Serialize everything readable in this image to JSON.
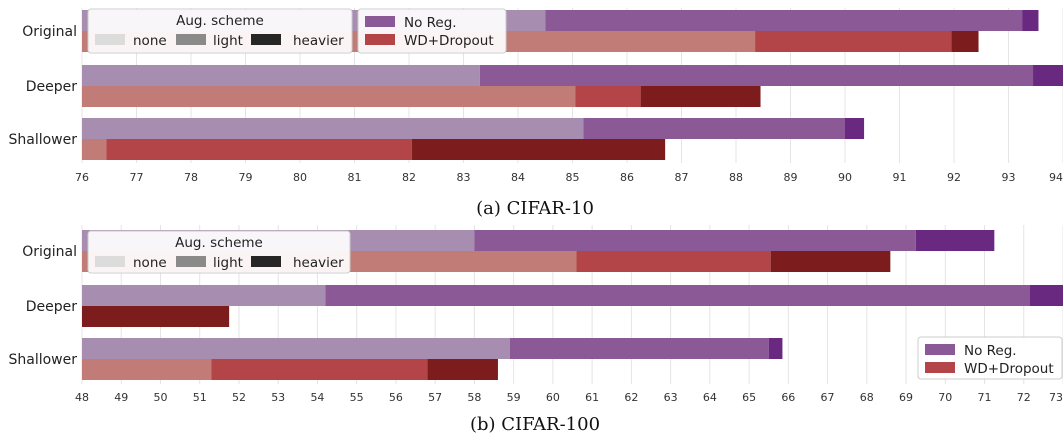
{
  "chart_data": [
    {
      "type": "bar",
      "orientation": "horizontal",
      "stacked_by": "augmentation",
      "caption": "(a) CIFAR-10",
      "categories": [
        "Original",
        "Deeper",
        "Shallower"
      ],
      "xlim": [
        76,
        94
      ],
      "xticks": [
        "76",
        "77",
        "78",
        "79",
        "80",
        "81",
        "82",
        "83",
        "84",
        "85",
        "86",
        "87",
        "88",
        "89",
        "90",
        "91",
        "92",
        "93",
        "94"
      ],
      "grid": "vertical",
      "aug_legend": {
        "title": "Aug. scheme",
        "entries": [
          "none",
          "light",
          "heavier"
        ],
        "placement": "top-left"
      },
      "reg_legend": {
        "entries": [
          "No Reg.",
          "WD+Dropout"
        ],
        "placement": "top"
      },
      "series": [
        {
          "name": "No Reg.",
          "none": [
            84.5,
            83.3,
            85.2
          ],
          "light": [
            93.25,
            93.45,
            90.0
          ],
          "heavier": [
            93.55,
            94.2,
            90.35
          ]
        },
        {
          "name": "WD+Dropout",
          "none": [
            88.35,
            85.05,
            76.45
          ],
          "light": [
            91.95,
            86.25,
            82.05
          ],
          "heavier": [
            92.45,
            88.45,
            86.7
          ]
        }
      ]
    },
    {
      "type": "bar",
      "orientation": "horizontal",
      "stacked_by": "augmentation",
      "caption": "(b) CIFAR-100",
      "categories": [
        "Original",
        "Deeper",
        "Shallower"
      ],
      "xlim": [
        48,
        73
      ],
      "xticks": [
        "48",
        "49",
        "50",
        "51",
        "52",
        "53",
        "54",
        "55",
        "56",
        "57",
        "58",
        "59",
        "60",
        "61",
        "62",
        "63",
        "64",
        "65",
        "66",
        "67",
        "68",
        "69",
        "70",
        "71",
        "72",
        "73"
      ],
      "grid": "vertical",
      "aug_legend": {
        "title": "Aug. scheme",
        "entries": [
          "none",
          "light",
          "heavier"
        ],
        "placement": "top-left"
      },
      "reg_legend": {
        "entries": [
          "No Reg.",
          "WD+Dropout"
        ],
        "placement": "bottom-right"
      },
      "series": [
        {
          "name": "No Reg.",
          "none": [
            58.0,
            54.2,
            58.9
          ],
          "light": [
            69.25,
            72.15,
            65.5
          ],
          "heavier": [
            71.25,
            73.2,
            65.85
          ]
        },
        {
          "name": "WD+Dropout",
          "none": [
            60.6,
            49.05,
            51.3
          ],
          "light": [
            65.55,
            48.0,
            56.8
          ],
          "heavier": [
            68.6,
            51.75,
            58.6
          ]
        }
      ]
    }
  ],
  "colors": {
    "no_reg": {
      "none": "#a78daf",
      "light": "#8b5996",
      "heavier": "#6a2980"
    },
    "wd_dropout": {
      "none": "#c17c78",
      "light": "#b34448",
      "heavier": "#7d1c1c"
    },
    "aug_legend": {
      "none": "#dcdcdc",
      "light": "#8a8a8a",
      "heavier": "#262626"
    },
    "grid": "#e4e4e4"
  }
}
